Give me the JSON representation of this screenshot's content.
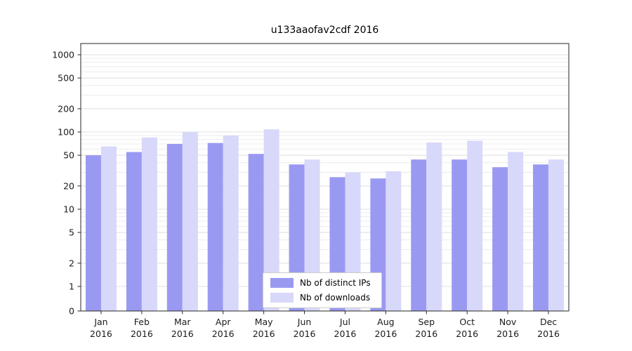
{
  "chart_data": {
    "type": "bar",
    "title": "u133aaofav2cdf 2016",
    "xlabel": "",
    "ylabel": "",
    "yscale": "symlog",
    "ylim": [
      0,
      1400
    ],
    "grid": true,
    "legend_position": "bottom-center-inside",
    "yticks": [
      0,
      1,
      2,
      5,
      10,
      20,
      50,
      100,
      200,
      500,
      1000
    ],
    "categories": [
      "Jan 2016",
      "Feb 2016",
      "Mar 2016",
      "Apr 2016",
      "May 2016",
      "Jun 2016",
      "Jul 2016",
      "Aug 2016",
      "Sep 2016",
      "Oct 2016",
      "Nov 2016",
      "Dec 2016"
    ],
    "series": [
      {
        "name": "Nb of distinct IPs",
        "color": "#9a99f2",
        "values": [
          50,
          55,
          70,
          72,
          52,
          38,
          26,
          25,
          44,
          44,
          35,
          38
        ]
      },
      {
        "name": "Nb of downloads",
        "color": "#d8d8fa",
        "values": [
          65,
          85,
          100,
          90,
          108,
          44,
          30,
          31,
          73,
          77,
          55,
          44
        ]
      }
    ]
  }
}
